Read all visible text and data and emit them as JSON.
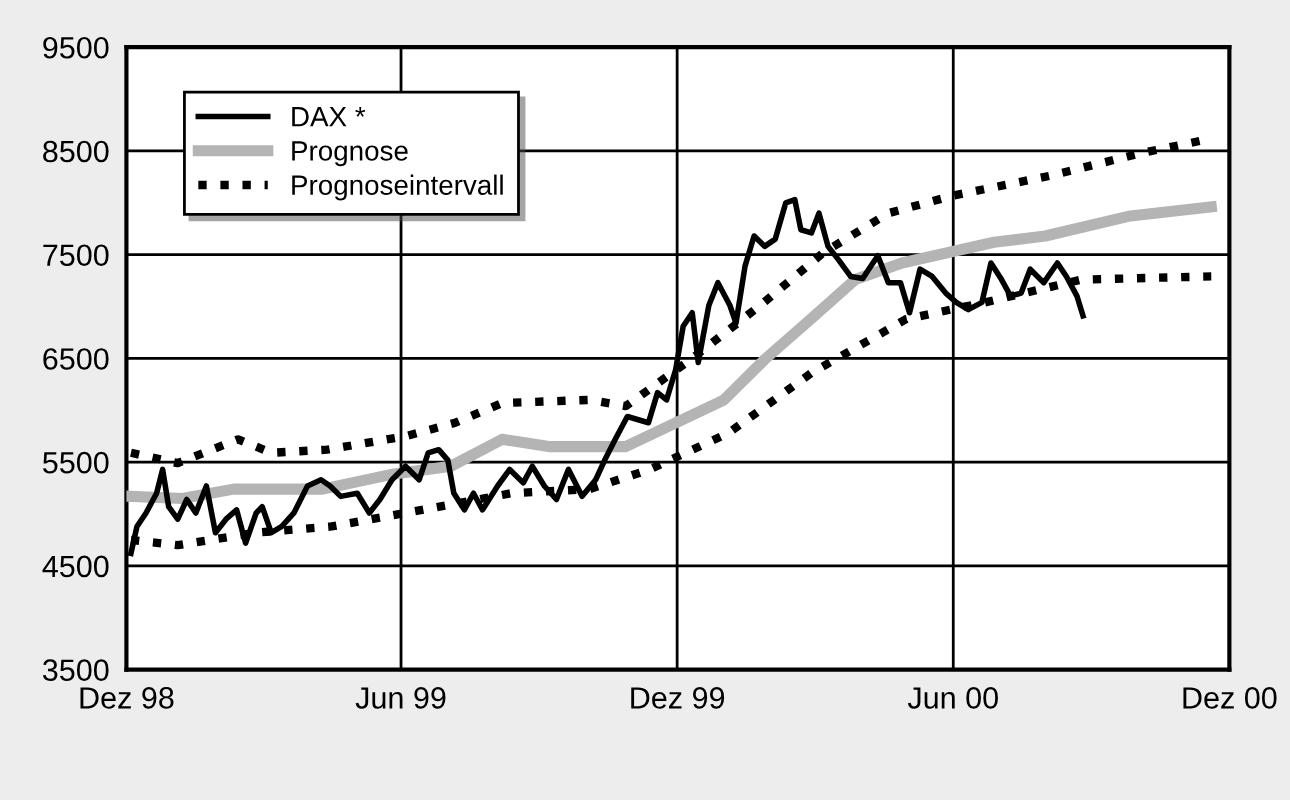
{
  "chart_data": {
    "type": "line",
    "xlim": [
      "1998-12-01",
      "2000-12-01"
    ],
    "xticks": [
      {
        "value": "1998-12-01",
        "label": "Dez 98"
      },
      {
        "value": "1999-06-01",
        "label": "Jun 99"
      },
      {
        "value": "1999-12-01",
        "label": "Dez 99"
      },
      {
        "value": "2000-06-01",
        "label": "Jun 00"
      },
      {
        "value": "2000-12-01",
        "label": "Dez 00"
      }
    ],
    "ylim": [
      3500,
      9500
    ],
    "yticks": [
      3500,
      4500,
      5500,
      6500,
      7500,
      8500,
      9500
    ],
    "grid": true,
    "legend": "top left",
    "marker": "none",
    "series": [
      {
        "name": "DAX *",
        "color": "#000000",
        "line_style": "solid",
        "x": [
          "1998-12-04",
          "1998-12-08",
          "1998-12-14",
          "1998-12-21",
          "1998-12-25",
          "1998-12-29",
          "1999-01-04",
          "1999-01-10",
          "1999-01-16",
          "1999-01-23",
          "1999-01-29",
          "1999-02-05",
          "1999-02-12",
          "1999-02-18",
          "1999-02-25",
          "1999-03-01",
          "1999-03-07",
          "1999-03-14",
          "1999-03-22",
          "1999-03-31",
          "1999-04-09",
          "1999-04-15",
          "1999-04-22",
          "1999-05-03",
          "1999-05-11",
          "1999-05-18",
          "1999-05-26",
          "1999-06-04",
          "1999-06-13",
          "1999-06-19",
          "1999-06-26",
          "1999-07-02",
          "1999-07-06",
          "1999-07-13",
          "1999-07-19",
          "1999-07-25",
          "1999-08-04",
          "1999-08-12",
          "1999-08-21",
          "1999-08-27",
          "1999-09-04",
          "1999-09-12",
          "1999-09-20",
          "1999-09-29",
          "1999-10-08",
          "1999-10-14",
          "1999-10-21",
          "1999-10-29",
          "1999-11-12",
          "1999-11-18",
          "1999-11-24",
          "1999-11-30",
          "1999-12-05",
          "1999-12-11",
          "1999-12-15",
          "1999-12-22",
          "1999-12-28",
          "2000-01-05",
          "2000-01-09",
          "2000-01-15",
          "2000-01-21",
          "2000-01-28",
          "2000-02-04",
          "2000-02-11",
          "2000-02-17",
          "2000-02-21",
          "2000-02-28",
          "2000-03-04",
          "2000-03-10",
          "2000-03-17",
          "2000-03-25",
          "2000-04-02",
          "2000-04-06",
          "2000-04-12",
          "2000-04-19",
          "2000-04-27",
          "2000-05-03",
          "2000-05-10",
          "2000-05-18",
          "2000-05-27",
          "2000-06-03",
          "2000-06-11",
          "2000-06-20",
          "2000-06-26",
          "2000-07-03",
          "2000-07-09",
          "2000-07-16",
          "2000-07-22",
          "2000-07-31",
          "2000-08-09",
          "2000-08-15",
          "2000-08-22",
          "2000-08-26"
        ],
        "values": [
          4620,
          4880,
          5010,
          5200,
          5430,
          5070,
          4950,
          5140,
          5010,
          5270,
          4820,
          4950,
          5040,
          4720,
          5010,
          5070,
          4820,
          4880,
          5010,
          5270,
          5330,
          5270,
          5170,
          5200,
          5010,
          5140,
          5330,
          5460,
          5330,
          5590,
          5620,
          5520,
          5200,
          5040,
          5200,
          5040,
          5270,
          5430,
          5300,
          5460,
          5270,
          5140,
          5430,
          5170,
          5330,
          5520,
          5720,
          5940,
          5880,
          6170,
          6100,
          6390,
          6810,
          6940,
          6460,
          7010,
          7230,
          7010,
          6840,
          7390,
          7680,
          7580,
          7650,
          8000,
          8030,
          7740,
          7710,
          7900,
          7580,
          7450,
          7290,
          7270,
          7360,
          7490,
          7230,
          7230,
          6940,
          7360,
          7290,
          7130,
          7040,
          6970,
          7040,
          7420,
          7260,
          7100,
          7130,
          7360,
          7230,
          7420,
          7290,
          7100,
          6910
        ]
      },
      {
        "name": "Prognose",
        "color": "#b4b4b4",
        "line_style": "solid",
        "x": [
          "1998-12-04",
          "1999-01-07",
          "1999-02-10",
          "1999-04-10",
          "1999-05-25",
          "1999-07-04",
          "1999-08-07",
          "1999-09-07",
          "1999-10-28",
          "2000-01-01",
          "2000-01-28",
          "2000-03-01",
          "2000-03-28",
          "2000-04-28",
          "2000-06-28",
          "2000-08-01",
          "2000-09-25",
          "2000-11-19"
        ],
        "values": [
          5170,
          5150,
          5240,
          5240,
          5380,
          5460,
          5720,
          5650,
          5650,
          6100,
          6490,
          6910,
          7260,
          7420,
          7620,
          7680,
          7870,
          7960
        ]
      },
      {
        "name": "Prognoseintervall",
        "color": "#000000",
        "line_style": "dotted",
        "x": [
          "1998-12-04",
          "1999-01-04",
          "1999-02-13",
          "1999-03-07",
          "1999-04-13",
          "1999-06-04",
          "1999-07-07",
          "1999-08-07",
          "1999-10-04",
          "1999-10-28",
          "1999-12-10",
          "2000-01-25",
          "2000-03-07",
          "2000-04-19",
          "2000-06-01",
          "2000-08-04",
          "2000-10-04",
          "2000-11-16"
        ],
        "values": [
          5590,
          5490,
          5720,
          5590,
          5620,
          5750,
          5880,
          6070,
          6100,
          6040,
          6490,
          7010,
          7520,
          7900,
          8070,
          8260,
          8480,
          8610
        ]
      },
      {
        "color": "#000000",
        "line_style": "dotted",
        "x": [
          "1998-12-04",
          "1999-01-04",
          "1999-02-25",
          "1999-04-16",
          "1999-06-04",
          "1999-08-13",
          "1999-10-04",
          "1999-11-13",
          "2000-01-04",
          "2000-02-28",
          "2000-05-01",
          "2000-06-22",
          "2000-08-25",
          "2000-11-19"
        ],
        "values": [
          4750,
          4700,
          4820,
          4880,
          5010,
          5200,
          5240,
          5430,
          5780,
          6360,
          6880,
          7040,
          7260,
          7290
        ]
      }
    ]
  }
}
